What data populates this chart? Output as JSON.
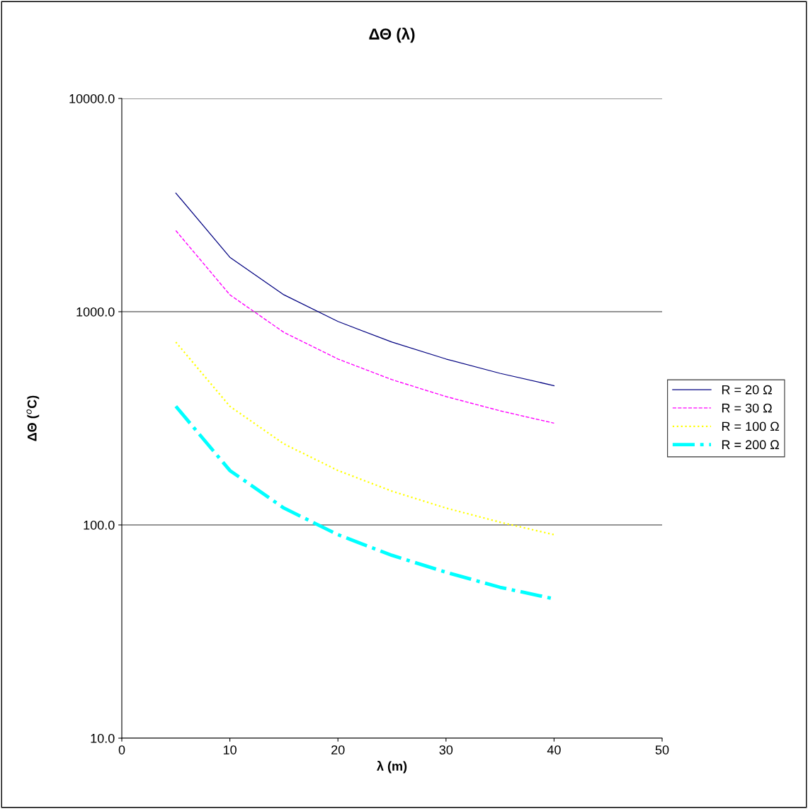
{
  "chart_data": {
    "type": "line",
    "title": "ΔΘ (λ)",
    "xlabel": "λ (m)",
    "ylabel": "ΔΘ ($^{o}$C)",
    "x": [
      5,
      10,
      15,
      20,
      25,
      30,
      35,
      40
    ],
    "series": [
      {
        "name": "R = 20 Ω",
        "color": "#000080",
        "line_style": "solid",
        "values": [
          3600,
          1800,
          1200,
          900,
          720,
          600,
          514,
          450
        ]
      },
      {
        "name": "R = 30 Ω",
        "color": "#ff00ff",
        "line_style": "dashed",
        "values": [
          2400,
          1200,
          800,
          600,
          480,
          400,
          343,
          300
        ]
      },
      {
        "name": "R = 100 Ω",
        "color": "#ffff00",
        "line_style": "dotted",
        "values": [
          720,
          360,
          240,
          180,
          144,
          120,
          103,
          90
        ]
      },
      {
        "name": "R = 200 Ω",
        "color": "#00ffff",
        "line_style": "dashdot",
        "values": [
          360,
          180,
          120,
          90,
          72,
          60,
          51,
          45
        ]
      }
    ],
    "log": "y",
    "xlim": [
      0,
      50
    ],
    "xticks": [
      0,
      10,
      20,
      30,
      40,
      50
    ],
    "ylim": [
      10,
      10000
    ],
    "yticks": [
      {
        "value": 10,
        "label": "10.0"
      },
      {
        "value": 100,
        "label": "100.0"
      },
      {
        "value": 1000,
        "label": "1000.0"
      },
      {
        "value": 10000,
        "label": "10000.0"
      }
    ],
    "grid": "y",
    "legend": "right",
    "marker": "none"
  }
}
